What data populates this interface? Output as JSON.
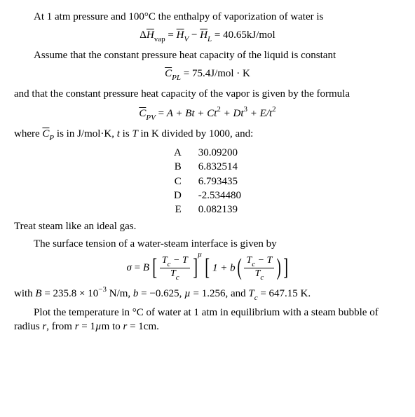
{
  "p1": "At 1 atm pressure and 100°C the enthalpy of vaporization of water is",
  "eq1": {
    "lhs_delta": "Δ",
    "lhs_Hbar": "H",
    "lhs_sub": "vap",
    "rhs_Hv": "H",
    "rhs_Vsub": "V",
    "minus": " − ",
    "rhs_Hl": "H",
    "rhs_Lsub": "L",
    "eq": " = ",
    "value": "40.65kJ/mol"
  },
  "p2": "Assume that the constant pressure heat capacity of the liquid is constant",
  "eq2": {
    "Cbar": "C",
    "sub": "P",
    "subL": "L",
    "eq": " = ",
    "value": "75.4J/mol · K"
  },
  "p3": "and that the constant pressure heat capacity of the vapor is given by the formula",
  "eq3": {
    "Cbar": "C",
    "sub": "P",
    "subV": "V",
    "eq": " = ",
    "poly": "A + Bt + Ct",
    "sq": "2",
    "plusD": " + Dt",
    "cu": "3",
    "plusE": " + E/t",
    "sq2": "2"
  },
  "p4_a": "where ",
  "p4_Cbar": "C",
  "p4_sub": "P",
  "p4_b": " is in J/mol·K, ",
  "p4_t": "t",
  "p4_c": " is ",
  "p4_T": "T",
  "p4_d": " in K divided by 1000, and:",
  "coeffs": [
    {
      "label": "A",
      "value": "30.09200"
    },
    {
      "label": "B",
      "value": "6.832514"
    },
    {
      "label": "C",
      "value": "6.793435"
    },
    {
      "label": "D",
      "value": "-2.534480"
    },
    {
      "label": "E",
      "value": "0.082139"
    }
  ],
  "p5": "Treat steam like an ideal gas.",
  "p6": "The surface tension of a water-steam interface is given by",
  "eq4": {
    "sigma": "σ",
    "eq": " = ",
    "B": "B",
    "frac_num1": "T",
    "frac_num1_c": "c",
    "frac_num1_minus": " − T",
    "frac_den1": "T",
    "frac_den1_c": "c",
    "mu": "µ",
    "one_plus_b": "1 + b",
    "frac_num2": "T",
    "frac_num2_c": "c",
    "frac_num2_minus": " − T",
    "frac_den2": "T",
    "frac_den2_c": "c"
  },
  "p7_a": "with ",
  "p7_B": "B",
  "p7_Bval": " = 235.8 × 10",
  "p7_Bexp": "−3",
  "p7_Bunit": " N/m, ",
  "p7_b": "b",
  "p7_bval": " = −0.625, ",
  "p7_mu": "µ",
  "p7_muval": " = 1.256, and ",
  "p7_Tc": "T",
  "p7_Tc_c": "c",
  "p7_Tcval": " = 647.15 K.",
  "p8_a": "Plot the temperature in °C of water at 1 atm in equilibrium with a steam bubble of radius ",
  "p8_r": "r",
  "p8_b": ", from ",
  "p8_r2": "r",
  "p8_c": " = 1",
  "p8_mu2": "µ",
  "p8_d": "m to ",
  "p8_r3": "r",
  "p8_e": " = 1cm."
}
